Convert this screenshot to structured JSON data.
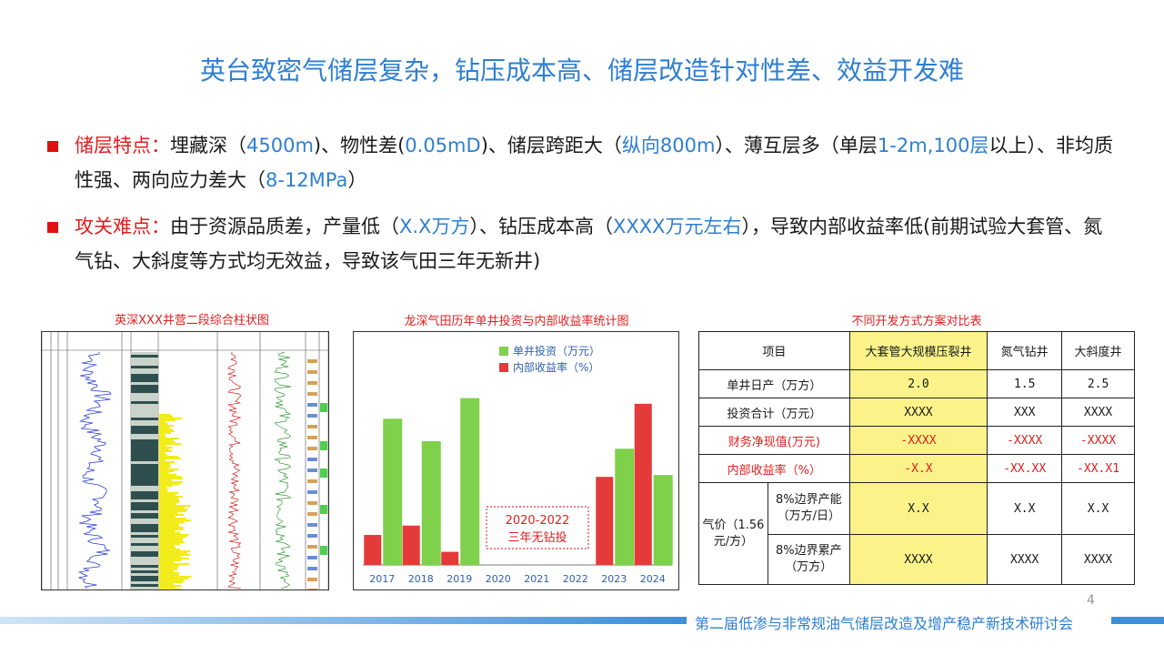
{
  "slide": {
    "title": "英台致密气储层复杂，钻压成本高、储层改造针对性差、效益开发难",
    "page_number": "4",
    "footer": "第二届低渗与非常规油气储层改造及增产稳产新技术研讨会"
  },
  "bullets": [
    {
      "label": "储层特点：",
      "segments": [
        {
          "text": "埋藏深（",
          "c": "n"
        },
        {
          "text": "4500m",
          "c": "b"
        },
        {
          "text": ")、物性差(",
          "c": "n"
        },
        {
          "text": "0.05mD",
          "c": "b"
        },
        {
          "text": ")、储层跨距大（",
          "c": "n"
        },
        {
          "text": "纵向800m",
          "c": "b"
        },
        {
          "text": "）、薄互层多（单层",
          "c": "n"
        },
        {
          "text": "1-2m,100层",
          "c": "b"
        },
        {
          "text": "以上）、非均质性强、两向应力差大（",
          "c": "n"
        },
        {
          "text": "8-12MPa",
          "c": "b"
        },
        {
          "text": "）",
          "c": "n"
        }
      ]
    },
    {
      "label": "攻关难点：",
      "segments": [
        {
          "text": "由于资源品质差，产量低（",
          "c": "n"
        },
        {
          "text": "X.X万方",
          "c": "b"
        },
        {
          "text": "）、钻压成本高（",
          "c": "n"
        },
        {
          "text": "XXXX万元左右",
          "c": "b"
        },
        {
          "text": "），导致内部收益率低(前期试验大套管、氮气钻、大斜度等方式均无效益，导致该气田三年无新井)",
          "c": "n"
        }
      ]
    }
  ],
  "log_figure": {
    "caption": "英深XXX井营二段综合柱状图"
  },
  "chart_data": {
    "type": "bar",
    "title": "龙深气田历年单井投资与内部收益率统计图",
    "categories": [
      "2017",
      "2018",
      "2019",
      "2020",
      "2021",
      "2022",
      "2023",
      "2024"
    ],
    "series": [
      {
        "name": "单井投资（万元）",
        "color": "#7fd04a",
        "values": [
          78,
          66,
          89,
          0,
          0,
          0,
          62,
          48
        ]
      },
      {
        "name": "内部收益率（%）",
        "color": "#e53a3a",
        "values": [
          16,
          21,
          7,
          0,
          0,
          0,
          47,
          86
        ]
      }
    ],
    "ylim": [
      0,
      100
    ],
    "annotation": {
      "line1": "2020-2022",
      "line2": "三年无钻投"
    },
    "legend": "top-left",
    "grid": false
  },
  "comparison_table": {
    "caption": "不同开发方式方案对比表",
    "headers": {
      "item": "项目",
      "col1": "大套管大规模压裂井",
      "col2": "氮气钻井",
      "col3": "大斜度井"
    },
    "rows": [
      {
        "label": "单井日产（万方）",
        "v1": "2.0",
        "v2": "1.5",
        "v3": "2.5",
        "red": false
      },
      {
        "label": "投资合计（万元）",
        "v1": "XXXX",
        "v2": "XXX",
        "v3": "XXXX",
        "red": false
      },
      {
        "label": "财务净现值(万元)",
        "v1": "-XXXX",
        "v2": "-XXXX",
        "v3": "-XXXX",
        "red": true
      },
      {
        "label": "内部收益率（%）",
        "v1": "-X.X",
        "v2": "-XX.XX",
        "v3": "-XX.X1",
        "red": true
      }
    ],
    "gas_price": {
      "label": "气价（1.56元/方）",
      "sub_rows": [
        {
          "label": "8%边界产能（万方/日）",
          "v1": "X.X",
          "v2": "X.X",
          "v3": "X.X"
        },
        {
          "label": "8%边界累产（万方）",
          "v1": "XXXX",
          "v2": "XXXX",
          "v3": "XXXX"
        }
      ]
    }
  }
}
